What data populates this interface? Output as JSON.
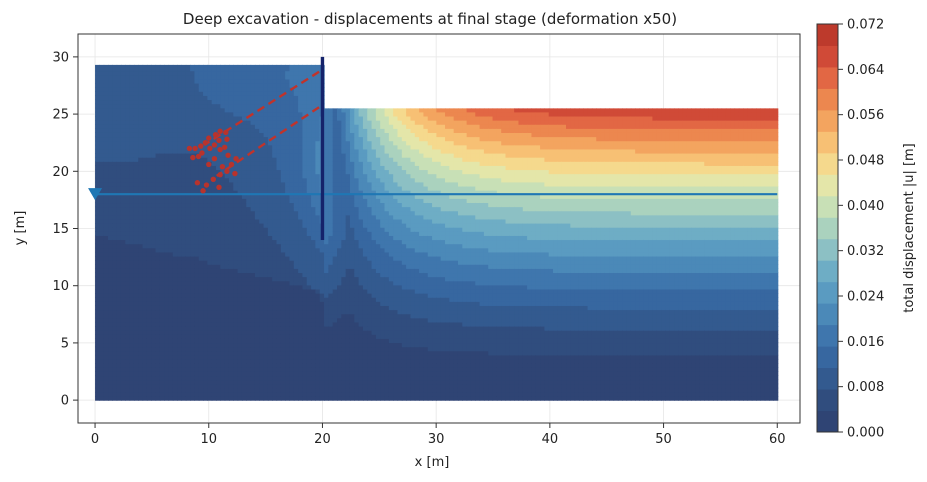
{
  "chart_data": {
    "type": "contour",
    "title": "Deep excavation - displacements at final stage  (deformation x50)",
    "xlabel": "x [m]",
    "ylabel": "y [m]",
    "xlim": [
      -1.5,
      62
    ],
    "ylim": [
      -2,
      32
    ],
    "xticks": [
      0,
      10,
      20,
      30,
      40,
      50,
      60
    ],
    "yticks": [
      0,
      5,
      10,
      15,
      20,
      25,
      30
    ],
    "grid": true,
    "colorbar": {
      "label": "total displacement |u| [m]",
      "min": 0.0,
      "max": 0.072,
      "levels": 18,
      "ticks": [
        "0.000",
        "0.008",
        "0.016",
        "0.024",
        "0.032",
        "0.040",
        "0.048",
        "0.056",
        "0.064",
        "0.072"
      ],
      "colormap": [
        "#2f4474",
        "#304d7e",
        "#335a8f",
        "#3767a0",
        "#3f76ad",
        "#4b89b8",
        "#5a9bc1",
        "#6eadc5",
        "#8cc0c4",
        "#aad2be",
        "#c8e0b6",
        "#e4e6a9",
        "#f5d98d",
        "#f7c074",
        "#f3a45f",
        "#ec874f",
        "#e26744",
        "#d04a37",
        "#bd3a2c"
      ]
    },
    "domain": {
      "retained_x": [
        0,
        20
      ],
      "retained_top": 29.3,
      "excavated_x": [
        20,
        60
      ],
      "excavated_top": 25.5,
      "bottom": 0
    },
    "wall": {
      "x": 20,
      "y_top": 30,
      "y_bottom": 14
    },
    "water_table": {
      "y": 18,
      "x": [
        0,
        60
      ]
    },
    "anchors": [
      {
        "from": [
          19.7,
          28.7
        ],
        "to": [
          9.6,
          22.3
        ]
      },
      {
        "from": [
          19.7,
          25.6
        ],
        "to": [
          10.7,
          19.6
        ]
      }
    ],
    "grout_points": [
      [
        8.3,
        22.0
      ],
      [
        8.8,
        22.0
      ],
      [
        9.3,
        22.2
      ],
      [
        9.7,
        22.5
      ],
      [
        10.1,
        22.0
      ],
      [
        10.5,
        22.3
      ],
      [
        11.0,
        21.9
      ],
      [
        11.4,
        22.1
      ],
      [
        11.0,
        23.5
      ],
      [
        11.5,
        23.4
      ],
      [
        10.6,
        23.2
      ],
      [
        10.0,
        22.9
      ],
      [
        9.4,
        21.6
      ],
      [
        8.6,
        21.2
      ],
      [
        9.1,
        21.3
      ],
      [
        10.9,
        22.7
      ],
      [
        11.6,
        22.8
      ],
      [
        10.0,
        20.6
      ],
      [
        10.5,
        21.1
      ],
      [
        11.2,
        20.4
      ],
      [
        11.6,
        20.0
      ],
      [
        12.0,
        20.6
      ],
      [
        12.4,
        21.1
      ],
      [
        11.7,
        21.4
      ],
      [
        12.3,
        19.8
      ],
      [
        11.0,
        19.7
      ],
      [
        10.4,
        19.3
      ],
      [
        9.8,
        18.8
      ],
      [
        10.9,
        18.6
      ],
      [
        9.0,
        19.0
      ],
      [
        9.5,
        18.3
      ]
    ]
  }
}
